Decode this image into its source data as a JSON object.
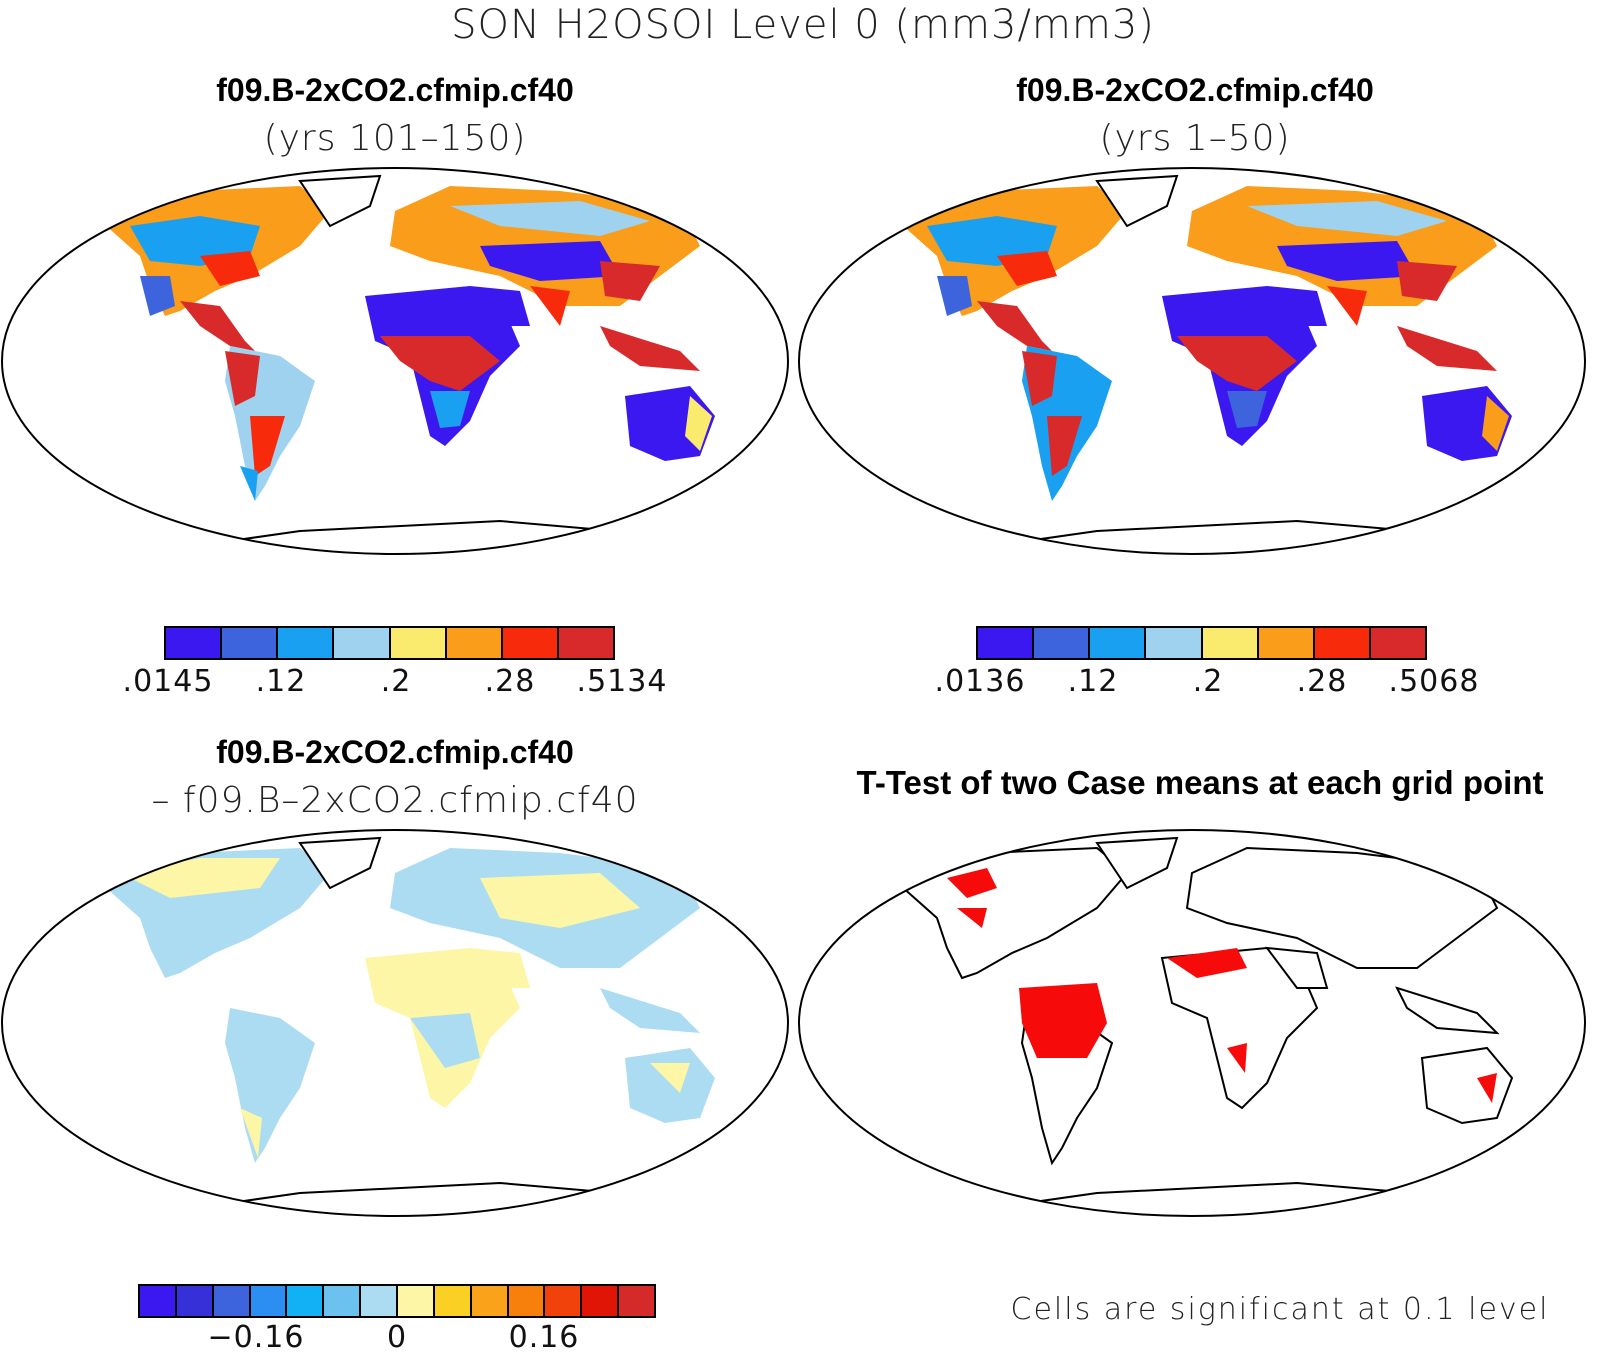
{
  "figure": {
    "title": "SON H2OSOI Level 0 (mm3/mm3)"
  },
  "panels": [
    {
      "id": "top-left",
      "title": "f09.B-2xCO2.cfmip.cf40",
      "subtitle": "(yrs 101–150)",
      "colorbar": {
        "colors": [
          "#3b17f0",
          "#3d64dd",
          "#1aa0f0",
          "#9fd2ee",
          "#faeb6e",
          "#f99d1a",
          "#f72b0c",
          "#d82a2a"
        ],
        "labels": [
          ".0145",
          ".12",
          ".2",
          ".28",
          ".5134"
        ]
      }
    },
    {
      "id": "top-right",
      "title": "f09.B-2xCO2.cfmip.cf40",
      "subtitle": "(yrs 1–50)",
      "colorbar": {
        "colors": [
          "#3b17f0",
          "#3d64dd",
          "#1aa0f0",
          "#9fd2ee",
          "#faeb6e",
          "#f99d1a",
          "#f72b0c",
          "#d82a2a"
        ],
        "labels": [
          ".0136",
          ".12",
          ".2",
          ".28",
          ".5068"
        ]
      }
    },
    {
      "id": "bottom-left",
      "title": "f09.B-2xCO2.cfmip.cf40",
      "subtitle": "– f09.B–2xCO2.cfmip.cf40",
      "colorbar": {
        "colors": [
          "#3b17f0",
          "#3530d8",
          "#3d64dd",
          "#2c8ef0",
          "#12b0f4",
          "#6cc2ee",
          "#acdcf2",
          "#fdf6a6",
          "#f9d023",
          "#f9a21a",
          "#f77f0b",
          "#f2420c",
          "#e01505",
          "#d42a2a"
        ],
        "labels": [
          "−0.16",
          "0",
          "0.16"
        ]
      }
    },
    {
      "id": "bottom-right",
      "title": "T-Test of two Case means at each grid point",
      "note": "Cells are significant at 0.1 level"
    }
  ]
}
